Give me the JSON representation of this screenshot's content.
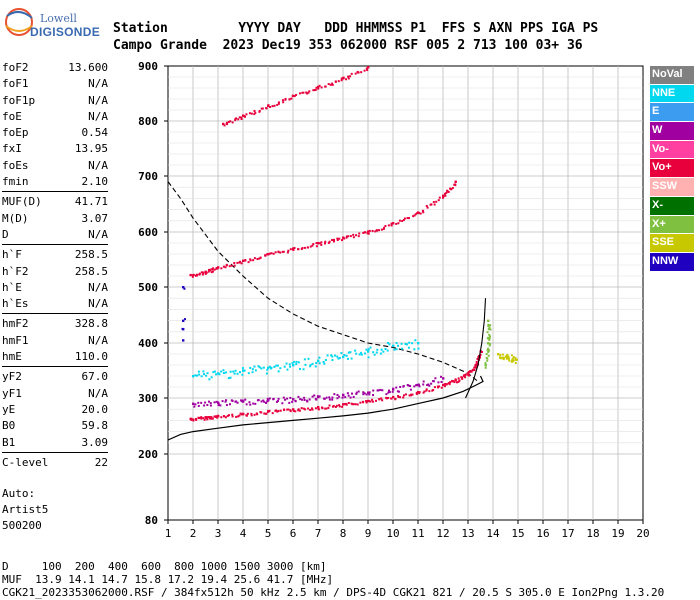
{
  "logo": {
    "line1": "Lowell",
    "line2": "DIGISONDE"
  },
  "header": {
    "line1": "Station         YYYY DAY   DDD HHMMSS P1  FFS S AXN PPS IGA PS",
    "line2": "Campo Grande  2023 Dec19 353 062000 RSF 005 2 713 100 03+ 36"
  },
  "params": [
    {
      "k": "foF2",
      "v": "13.600"
    },
    {
      "k": "foF1",
      "v": "N/A"
    },
    {
      "k": "foF1p",
      "v": "N/A"
    },
    {
      "k": "foE",
      "v": "N/A"
    },
    {
      "k": "foEp",
      "v": "0.54"
    },
    {
      "k": "fxI",
      "v": "13.95"
    },
    {
      "k": "foEs",
      "v": "N/A"
    },
    {
      "k": "fmin",
      "v": "2.10"
    },
    {
      "k": "MUF(D)",
      "v": "41.71"
    },
    {
      "k": "M(D)",
      "v": "3.07"
    },
    {
      "k": "D",
      "v": "N/A"
    },
    {
      "k": "h`F",
      "v": "258.5"
    },
    {
      "k": "h`F2",
      "v": "258.5"
    },
    {
      "k": "h`E",
      "v": "N/A"
    },
    {
      "k": "h`Es",
      "v": "N/A"
    },
    {
      "k": "hmF2",
      "v": "328.8"
    },
    {
      "k": "hmF1",
      "v": "N/A"
    },
    {
      "k": "hmE",
      "v": "110.0"
    },
    {
      "k": "yF2",
      "v": "67.0"
    },
    {
      "k": "yF1",
      "v": "N/A"
    },
    {
      "k": "yE",
      "v": "20.0"
    },
    {
      "k": "B0",
      "v": "59.8"
    },
    {
      "k": "B1",
      "v": "3.09"
    },
    {
      "k": "C-level",
      "v": "22"
    }
  ],
  "auto": {
    "line1": "Auto:",
    "line2": "Artist5",
    "line3": "500200"
  },
  "legend": [
    {
      "label": "NoVal",
      "color": "#808080"
    },
    {
      "label": "NNE",
      "color": "#00d8f0"
    },
    {
      "label": "E",
      "color": "#3c9cf0"
    },
    {
      "label": "W",
      "color": "#a000a0"
    },
    {
      "label": "Vo-",
      "color": "#ff40a0"
    },
    {
      "label": "Vo+",
      "color": "#e8003c"
    },
    {
      "label": "SSW",
      "color": "#ffb0b0"
    },
    {
      "label": "X-",
      "color": "#007000"
    },
    {
      "label": "X+",
      "color": "#80c040"
    },
    {
      "label": "SSE",
      "color": "#c8c800"
    },
    {
      "label": "NNW",
      "color": "#2000c0"
    }
  ],
  "bottom": {
    "line1": "D     100  200  400  600  800 1000 1500 3000 [km]",
    "line2": "MUF  13.9 14.1 14.7 15.8 17.2 19.4 25.6 41.7 [MHz]",
    "line3": "CGK21_2023353062000.RSF / 384fx512h 50 kHz 2.5 km / DPS-4D CGK21 821 / 20.5 S 305.0 E Ion2Png 1.3.20"
  },
  "chart_data": {
    "type": "scatter",
    "title": "",
    "xlabel": "",
    "ylabel": "",
    "xlim": [
      1,
      20
    ],
    "ylim": [
      80,
      900
    ],
    "x_ticks": [
      1,
      2,
      3,
      4,
      5,
      6,
      7,
      8,
      9,
      10,
      11,
      12,
      13,
      14,
      15,
      16,
      17,
      18,
      19,
      20
    ],
    "y_ticks": [
      80,
      200,
      300,
      400,
      500,
      600,
      700,
      800,
      900
    ],
    "grid": true,
    "series": [
      {
        "name": "Vo+",
        "color": "#e8003c",
        "points": [
          [
            1.9,
            263
          ],
          [
            2.5,
            266
          ],
          [
            3,
            268
          ],
          [
            4,
            272
          ],
          [
            5,
            276
          ],
          [
            6,
            280
          ],
          [
            7,
            284
          ],
          [
            8,
            289
          ],
          [
            9,
            295
          ],
          [
            10,
            302
          ],
          [
            11,
            311
          ],
          [
            12,
            324
          ],
          [
            12.5,
            333
          ],
          [
            13,
            345
          ],
          [
            13.3,
            360
          ],
          [
            13.5,
            385
          ]
        ]
      },
      {
        "name": "Vo+",
        "color": "#e8003c",
        "points": [
          [
            1.9,
            522
          ],
          [
            2.5,
            528
          ],
          [
            3,
            536
          ],
          [
            4,
            548
          ],
          [
            5,
            560
          ],
          [
            6,
            570
          ],
          [
            7,
            580
          ],
          [
            8,
            590
          ],
          [
            9,
            601
          ],
          [
            10,
            616
          ],
          [
            11,
            635
          ],
          [
            12,
            665
          ],
          [
            12.5,
            690
          ]
        ]
      },
      {
        "name": "Vo+",
        "color": "#e8003c",
        "points": [
          [
            3.2,
            795
          ],
          [
            4,
            810
          ],
          [
            5,
            828
          ],
          [
            6,
            846
          ],
          [
            7,
            862
          ],
          [
            8,
            878
          ],
          [
            9,
            898
          ]
        ]
      },
      {
        "name": "W",
        "color": "#a000a0",
        "points": [
          [
            2,
            290
          ],
          [
            3,
            292
          ],
          [
            4,
            294
          ],
          [
            5,
            296
          ],
          [
            6,
            298
          ],
          [
            7,
            302
          ],
          [
            8,
            306
          ],
          [
            9,
            310
          ],
          [
            10,
            316
          ],
          [
            11,
            324
          ],
          [
            12,
            336
          ]
        ]
      },
      {
        "name": "NNE",
        "color": "#00d8f0",
        "points": [
          [
            2,
            340
          ],
          [
            3,
            345
          ],
          [
            4,
            350
          ],
          [
            5,
            355
          ],
          [
            6,
            360
          ],
          [
            7,
            368
          ],
          [
            8,
            375
          ],
          [
            9,
            385
          ],
          [
            10,
            395
          ],
          [
            11,
            400
          ]
        ]
      },
      {
        "name": "X+",
        "color": "#80c040",
        "points": [
          [
            13.7,
            360
          ],
          [
            13.8,
            400
          ],
          [
            13.8,
            440
          ]
        ]
      },
      {
        "name": "SSE",
        "color": "#c8c800",
        "points": [
          [
            14.2,
            380
          ],
          [
            14.6,
            375
          ],
          [
            14.9,
            370
          ]
        ]
      },
      {
        "name": "NNW",
        "color": "#2000c0",
        "points": [
          [
            1.6,
            500
          ],
          [
            1.6,
            440
          ],
          [
            1.6,
            425
          ],
          [
            1.6,
            405
          ]
        ]
      }
    ],
    "profile_curve": [
      [
        1,
        225
      ],
      [
        1.5,
        235
      ],
      [
        2,
        240
      ],
      [
        3,
        246
      ],
      [
        4,
        252
      ],
      [
        5,
        256
      ],
      [
        6,
        260
      ],
      [
        7,
        264
      ],
      [
        8,
        268
      ],
      [
        9,
        273
      ],
      [
        10,
        280
      ],
      [
        11,
        290
      ],
      [
        12,
        300
      ],
      [
        12.8,
        312
      ],
      [
        13.3,
        323
      ],
      [
        13.6,
        330
      ],
      [
        13.5,
        340
      ]
    ],
    "trace_curve": [
      [
        12.9,
        300
      ],
      [
        13.2,
        330
      ],
      [
        13.4,
        360
      ],
      [
        13.55,
        400
      ],
      [
        13.65,
        440
      ],
      [
        13.7,
        480
      ]
    ],
    "dashed_curve": [
      [
        1,
        690
      ],
      [
        1.5,
        660
      ],
      [
        2,
        625
      ],
      [
        3,
        565
      ],
      [
        4,
        520
      ],
      [
        5,
        480
      ],
      [
        6,
        452
      ],
      [
        7,
        430
      ],
      [
        8,
        415
      ],
      [
        9,
        400
      ],
      [
        10,
        392
      ],
      [
        11,
        380
      ],
      [
        12,
        365
      ],
      [
        13,
        345
      ],
      [
        13.4,
        330
      ]
    ]
  }
}
